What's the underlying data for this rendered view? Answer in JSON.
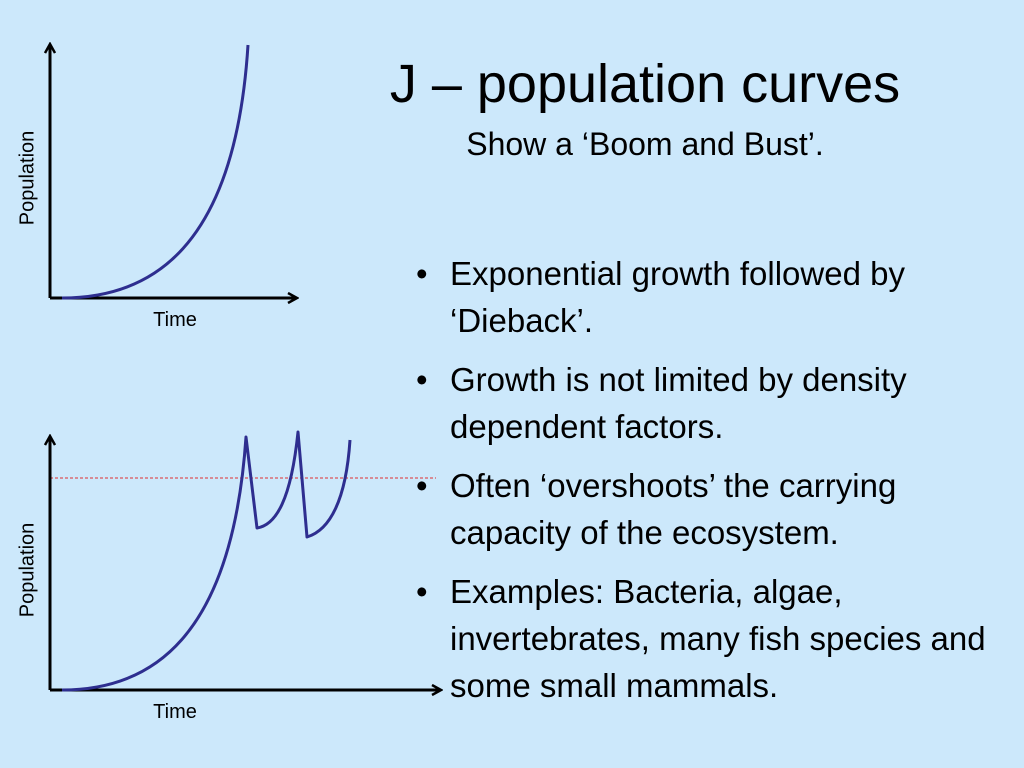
{
  "title": "J – population curves",
  "subtitle": "Show a ‘Boom and Bust’.",
  "bullets": [
    "Exponential growth followed by ‘Dieback’.",
    "Growth is not limited by density dependent factors.",
    "Often ‘overshoots’ the carrying capacity of the ecosystem.",
    "Examples: Bacteria, algae, invertebrates, many fish species and some small mammals."
  ],
  "graphs": [
    {
      "y_label": "Population",
      "x_label": "Time"
    },
    {
      "y_label": "Population",
      "x_label": "Time"
    }
  ]
}
